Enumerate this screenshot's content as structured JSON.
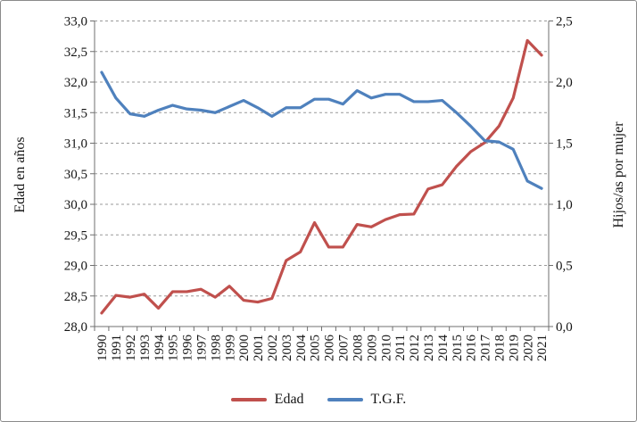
{
  "figure": {
    "background_color": "#ffffff",
    "border_color": "#8a8a8a",
    "gridline_color": "#999999",
    "axis_line_color": "#6f6f6f",
    "text_color": "#141414"
  },
  "chart_data": {
    "type": "line",
    "title": "",
    "grid": true,
    "legend_position": "bottom",
    "categories": [
      "1990",
      "1991",
      "1992",
      "1993",
      "1994",
      "1995",
      "1996",
      "1997",
      "1998",
      "1999",
      "2000",
      "2001",
      "2002",
      "2003",
      "2004",
      "2005",
      "2006",
      "2007",
      "2008",
      "2009",
      "2010",
      "2011",
      "2012",
      "2013",
      "2014",
      "2015",
      "2016",
      "2017",
      "2018",
      "2019",
      "2020",
      "2021"
    ],
    "series": [
      {
        "name": "Edad",
        "axis": "left",
        "color": "#C0504D",
        "values": [
          28.22,
          28.51,
          28.48,
          28.53,
          28.3,
          28.57,
          28.57,
          28.61,
          28.48,
          28.66,
          28.43,
          28.4,
          28.46,
          29.08,
          29.22,
          29.7,
          29.3,
          29.3,
          29.67,
          29.63,
          29.75,
          29.83,
          29.84,
          30.25,
          30.32,
          30.62,
          30.86,
          31.01,
          31.28,
          31.74,
          32.68,
          32.44
        ]
      },
      {
        "name": "T.G.F.",
        "axis": "right",
        "color": "#4F81BD",
        "values": [
          2.08,
          1.87,
          1.74,
          1.72,
          1.77,
          1.81,
          1.78,
          1.77,
          1.75,
          1.8,
          1.85,
          1.79,
          1.72,
          1.79,
          1.79,
          1.86,
          1.86,
          1.82,
          1.93,
          1.87,
          1.9,
          1.9,
          1.84,
          1.84,
          1.85,
          1.75,
          1.64,
          1.52,
          1.51,
          1.45,
          1.19,
          1.13
        ]
      }
    ],
    "left_axis": {
      "title": "Edad en años",
      "min": 28.0,
      "max": 33.0,
      "step": 0.5,
      "tick_labels": [
        "33,0",
        "32,5",
        "32,0",
        "31,5",
        "31,0",
        "30,5",
        "30,0",
        "29,5",
        "29,0",
        "28,5",
        "28,0"
      ]
    },
    "right_axis": {
      "title": "Hijos/as por mujer",
      "min": 0.0,
      "max": 2.5,
      "step": 0.5,
      "tick_labels": [
        "2,5",
        "2,0",
        "1,5",
        "1,0",
        "0,5",
        "0,0"
      ]
    }
  }
}
